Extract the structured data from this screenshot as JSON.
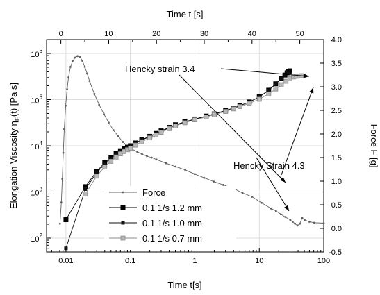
{
  "chart_data": {
    "type": "scatter",
    "title": "",
    "x_axis_bottom": {
      "label": "Time t[s]",
      "scale": "log",
      "range": [
        0.005,
        100
      ],
      "ticks": [
        {
          "value": 0.01,
          "label": "0.01"
        },
        {
          "value": 0.1,
          "label": "0.1"
        },
        {
          "value": 1,
          "label": "1"
        },
        {
          "value": 10,
          "label": "10"
        },
        {
          "value": 100,
          "label": "100"
        }
      ]
    },
    "x_axis_top": {
      "label": "Time t [s]",
      "scale": "linear",
      "range": [
        -3,
        55
      ],
      "ticks": [
        {
          "value": 0,
          "label": "0"
        },
        {
          "value": 10,
          "label": "10"
        },
        {
          "value": 20,
          "label": "20"
        },
        {
          "value": 30,
          "label": "30"
        },
        {
          "value": 40,
          "label": "40"
        },
        {
          "value": 50,
          "label": "50"
        }
      ]
    },
    "y_axis_left": {
      "label_main": "Elongation Viscosity η",
      "label_sub": "E",
      "label_tail": "(t) [Pa s]",
      "scale": "log",
      "range": [
        50,
        2000000
      ],
      "ticks": [
        {
          "value": 100,
          "base": "10",
          "exp": "2"
        },
        {
          "value": 1000,
          "base": "10",
          "exp": "3"
        },
        {
          "value": 10000,
          "base": "10",
          "exp": "4"
        },
        {
          "value": 100000,
          "base": "10",
          "exp": "5"
        },
        {
          "value": 1000000,
          "base": "10",
          "exp": "6"
        }
      ]
    },
    "y_axis_right": {
      "label": "Force F [g]",
      "scale": "linear",
      "range": [
        -0.5,
        4.0
      ],
      "ticks": [
        {
          "value": -0.5,
          "label": "-0.5"
        },
        {
          "value": 0.0,
          "label": "0.0"
        },
        {
          "value": 0.5,
          "label": "0.5"
        },
        {
          "value": 1.0,
          "label": "1.0"
        },
        {
          "value": 1.5,
          "label": "1.5"
        },
        {
          "value": 2.0,
          "label": "2.0"
        },
        {
          "value": 2.5,
          "label": "2.5"
        },
        {
          "value": 3.0,
          "label": "3.0"
        },
        {
          "value": 3.5,
          "label": "3.5"
        },
        {
          "value": 4.0,
          "label": "4.0"
        }
      ]
    },
    "grid": true,
    "series": [
      {
        "name": "Force",
        "axis": "top-right",
        "color": "#606060",
        "marker": "dot",
        "x": [
          -0.2,
          0.1,
          0.3,
          0.5,
          0.7,
          1.0,
          1.3,
          1.6,
          2.0,
          2.5,
          3.0,
          3.5,
          4.0,
          4.5,
          5.0,
          5.5,
          6.0,
          7.0,
          8.0,
          9.0,
          10.0,
          11.0,
          12.0,
          13.0,
          14.0,
          15.0,
          16.0,
          17.0,
          18.0,
          19.0,
          20.0,
          22.0,
          24.0,
          26.0,
          28.0,
          30.0,
          32.0,
          34.0,
          36.0,
          38.0,
          40.0,
          42.0,
          44.0,
          45.0,
          46.0,
          47.0,
          48.0,
          48.5,
          49.0,
          49.5,
          50.0,
          50.5,
          51.0,
          52.0,
          53.0,
          55.0
        ],
        "y": [
          0.1,
          0.55,
          1.05,
          1.6,
          2.1,
          2.6,
          2.95,
          3.2,
          3.42,
          3.55,
          3.62,
          3.65,
          3.63,
          3.55,
          3.42,
          3.28,
          3.12,
          2.85,
          2.62,
          2.42,
          2.24,
          2.08,
          1.95,
          1.83,
          1.74,
          1.67,
          1.62,
          1.57,
          1.53,
          1.5,
          1.46,
          1.38,
          1.31,
          1.24,
          1.15,
          1.07,
          0.99,
          0.92,
          0.85,
          0.75,
          0.67,
          0.54,
          0.42,
          0.37,
          0.3,
          0.24,
          0.18,
          0.14,
          0.1,
          0.06,
          0.1,
          0.22,
          0.18,
          0.14,
          0.12,
          0.11
        ]
      },
      {
        "name": "0.1 1/s  1.2 mm",
        "axis": "bottom-left",
        "color": "#000000",
        "marker": "square-large",
        "x": [
          0.01,
          0.02,
          0.03,
          0.04,
          0.05,
          0.06,
          0.07,
          0.08,
          0.09,
          0.1,
          0.12,
          0.15,
          0.2,
          0.25,
          0.3,
          0.4,
          0.5,
          0.7,
          1.0,
          1.5,
          2.0,
          3.0,
          4.0,
          5.0,
          7.0,
          10.0,
          14.0,
          18.0,
          22.0,
          25.0,
          27.0,
          28.0,
          29.0,
          30.0
        ],
        "y": [
          250,
          1300,
          2800,
          4300,
          5600,
          6800,
          7800,
          8600,
          9300,
          10000,
          11500,
          13500,
          16000,
          18500,
          21000,
          25000,
          28500,
          33000,
          38000,
          44000,
          49000,
          58000,
          66000,
          74000,
          89000,
          115000,
          160000,
          220000,
          290000,
          340000,
          380000,
          400000,
          410000,
          420000
        ]
      },
      {
        "name": "0.1 1/s  1.0 mm",
        "axis": "bottom-left",
        "color": "#111111",
        "marker": "square-small",
        "x": [
          0.01,
          0.02,
          0.03,
          0.04,
          0.05,
          0.06,
          0.07,
          0.08,
          0.09,
          0.1,
          0.12,
          0.15,
          0.2,
          0.25,
          0.3,
          0.4,
          0.5,
          0.7,
          1.0,
          1.5,
          2.0,
          3.0,
          4.0,
          5.0,
          7.0,
          10.0,
          14.0,
          18.0,
          22.0,
          25.0,
          27.0,
          28.0
        ],
        "y": [
          60,
          1150,
          2600,
          4000,
          5300,
          6500,
          7500,
          8300,
          9000,
          9700,
          11200,
          13200,
          15800,
          18200,
          20500,
          24500,
          28000,
          32500,
          37500,
          43500,
          48500,
          57500,
          65500,
          73500,
          88500,
          114000,
          158000,
          218000,
          288000,
          338000,
          378000,
          395000
        ]
      },
      {
        "name": "0.1 1/s  0.7 mm",
        "axis": "bottom-left",
        "color": "#8a8a8a",
        "marker": "square-gray",
        "x": [
          0.02,
          0.03,
          0.04,
          0.05,
          0.06,
          0.07,
          0.08,
          0.09,
          0.1,
          0.12,
          0.15,
          0.2,
          0.25,
          0.3,
          0.4,
          0.5,
          0.7,
          1.0,
          1.5,
          2.0,
          3.0,
          4.0,
          5.0,
          7.0,
          10.0,
          14.0,
          18.0,
          22.0,
          26.0,
          30.0,
          34.0,
          38.0,
          42.0,
          45.0
        ],
        "y": [
          900,
          2200,
          3500,
          4600,
          5700,
          6700,
          7500,
          8200,
          8900,
          10300,
          12200,
          14800,
          17200,
          19500,
          23500,
          27000,
          31500,
          36500,
          42000,
          47000,
          55500,
          63000,
          70500,
          83000,
          102000,
          133000,
          170000,
          210000,
          250000,
          285000,
          310000,
          320000,
          325000,
          330000
        ]
      }
    ],
    "legend": {
      "position": "lower-left",
      "entries": [
        "Force",
        "0.1 1/s  1.2 mm",
        "0.1 1/s  1.0 mm",
        "0.1 1/s  0.7 mm"
      ]
    },
    "annotations": [
      {
        "text": "Hencky strain 3.4"
      },
      {
        "text": "Hencky Strain 4.3"
      }
    ]
  }
}
